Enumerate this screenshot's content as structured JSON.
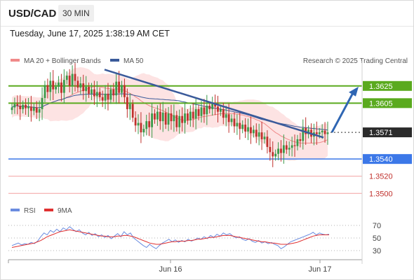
{
  "header": {
    "symbol": "USD/CAD",
    "timeframe": "30 MIN"
  },
  "timestamp": "Tuesday, June 17, 2025 1:38:19 AM CET",
  "legend": {
    "bollinger": "MA 20 + Bollinger Bands",
    "ma50": "MA 50",
    "credit": "Research © 2025 Trading Central",
    "rsi": "RSI",
    "rsi_ma": "9MA"
  },
  "colors": {
    "up": "#3a9a4a",
    "down": "#c0302c",
    "ma20": "#f08a8a",
    "band": "#fde3e3",
    "ma50": "#3a5a9a",
    "resistance": "#5aaa1e",
    "support": "#3c78e8",
    "support_dim": "#f4a0a0",
    "current": "#2b2b2b",
    "arrow": "#2f66b3",
    "rsi": "#6a8ce0",
    "rsi_ma": "#e03030"
  },
  "chart_data": [
    {
      "type": "candlestick",
      "title": "USD/CAD 30 MIN",
      "x_labels": [
        "Jun 16",
        "Jun 17"
      ],
      "ylim": [
        1.3488,
        1.3646
      ],
      "current_price": 1.3571,
      "levels": [
        {
          "value": 1.3625,
          "label": "1.3625",
          "kind": "resistance"
        },
        {
          "value": 1.3605,
          "label": "1.3605",
          "kind": "resistance"
        },
        {
          "value": 1.354,
          "label": "1.3540",
          "kind": "support"
        },
        {
          "value": 1.352,
          "label": "1.3520",
          "kind": "support-dim"
        },
        {
          "value": 1.35,
          "label": "1.3500",
          "kind": "support-dim"
        }
      ],
      "current_label": "1.3571",
      "arrow_target": 1.3625,
      "trendline": {
        "from": 1.3644,
        "to": 1.3565
      },
      "closes": [
        1.36,
        1.3604,
        1.3602,
        1.3598,
        1.3603,
        1.3599,
        1.3601,
        1.3596,
        1.36,
        1.3594,
        1.3598,
        1.3611,
        1.3626,
        1.3618,
        1.3631,
        1.3621,
        1.3624,
        1.3629,
        1.3617,
        1.3632,
        1.3637,
        1.3625,
        1.3639,
        1.3631,
        1.3623,
        1.3628,
        1.3619,
        1.3624,
        1.3616,
        1.3621,
        1.3613,
        1.3618,
        1.3612,
        1.3608,
        1.3616,
        1.3609,
        1.3621,
        1.3614,
        1.363,
        1.3617,
        1.3626,
        1.3612,
        1.3598,
        1.3604,
        1.3588,
        1.3579,
        1.3582,
        1.3571,
        1.3575,
        1.3584,
        1.3577,
        1.3593,
        1.3586,
        1.3595,
        1.3584,
        1.3594,
        1.358,
        1.3593,
        1.3584,
        1.3591,
        1.3577,
        1.359,
        1.3582,
        1.3593,
        1.3585,
        1.3595,
        1.3587,
        1.3598,
        1.359,
        1.36,
        1.3592,
        1.3602,
        1.3598,
        1.3605,
        1.3601,
        1.3595,
        1.3598,
        1.3588,
        1.3592,
        1.3583,
        1.3587,
        1.3578,
        1.3582,
        1.3575,
        1.358,
        1.3572,
        1.3577,
        1.357,
        1.3574,
        1.3566,
        1.3571,
        1.3563,
        1.3566,
        1.3554,
        1.3548,
        1.3543,
        1.3546,
        1.3552,
        1.3547,
        1.3556,
        1.3551,
        1.3553,
        1.3556,
        1.3555,
        1.3563,
        1.3561,
        1.3576,
        1.3569,
        1.3574,
        1.3566,
        1.3571,
        1.3569,
        1.3571,
        1.3573,
        1.3569,
        1.3571
      ]
    },
    {
      "type": "line",
      "title": "RSI",
      "yticks": [
        70,
        50,
        30
      ],
      "ylim": [
        20,
        80
      ],
      "rsi": [
        38,
        40,
        42,
        39,
        41,
        40,
        43,
        41,
        45,
        52,
        58,
        55,
        62,
        59,
        64,
        60,
        66,
        63,
        68,
        64,
        60,
        63,
        58,
        55,
        59,
        54,
        57,
        52,
        55,
        51,
        54,
        49,
        53,
        57,
        52,
        60,
        55,
        58,
        50,
        46,
        42,
        38,
        35,
        40,
        36,
        33,
        38,
        42,
        45,
        48,
        44,
        47,
        43,
        46,
        44,
        48,
        45,
        47,
        50,
        48,
        52,
        49,
        54,
        51,
        56,
        53,
        58,
        55,
        57,
        53,
        50,
        52,
        48,
        46,
        49,
        45,
        43,
        46,
        42,
        44,
        41,
        43,
        40,
        38,
        33,
        36,
        40,
        44,
        46,
        48,
        50,
        52,
        54,
        56,
        59,
        55,
        58,
        56,
        55,
        56
      ],
      "rsi_ma": [
        35,
        36,
        37,
        38,
        39,
        40,
        41,
        42,
        44,
        46,
        49,
        52,
        54,
        56,
        58,
        60,
        61,
        62,
        63,
        62,
        61,
        60,
        59,
        58,
        57,
        56,
        55,
        54,
        53,
        53,
        52,
        52,
        52,
        53,
        53,
        54,
        54,
        53,
        52,
        50,
        48,
        46,
        44,
        42,
        41,
        40,
        40,
        41,
        42,
        43,
        44,
        44,
        45,
        45,
        45,
        46,
        46,
        47,
        48,
        48,
        49,
        50,
        51,
        51,
        52,
        53,
        54,
        54,
        54,
        53,
        52,
        51,
        50,
        49,
        48,
        47,
        46,
        45,
        44,
        44,
        43,
        42,
        42,
        41,
        40,
        40,
        40,
        41,
        42,
        43,
        45,
        47,
        49,
        51,
        53,
        54,
        55,
        55,
        55,
        55
      ]
    }
  ]
}
